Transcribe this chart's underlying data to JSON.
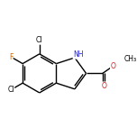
{
  "bg_color": "#ffffff",
  "bond_color": "#000000",
  "color_N": "#2222cc",
  "color_O": "#cc2222",
  "color_Cl": "#000000",
  "color_F": "#cc6600",
  "color_C": "#000000",
  "lw": 1.0,
  "fs": 5.5,
  "dpi": 100,
  "figsize": [
    1.52,
    1.52
  ],
  "xlim": [
    -2.0,
    3.8
  ],
  "ylim": [
    -2.0,
    2.5
  ]
}
